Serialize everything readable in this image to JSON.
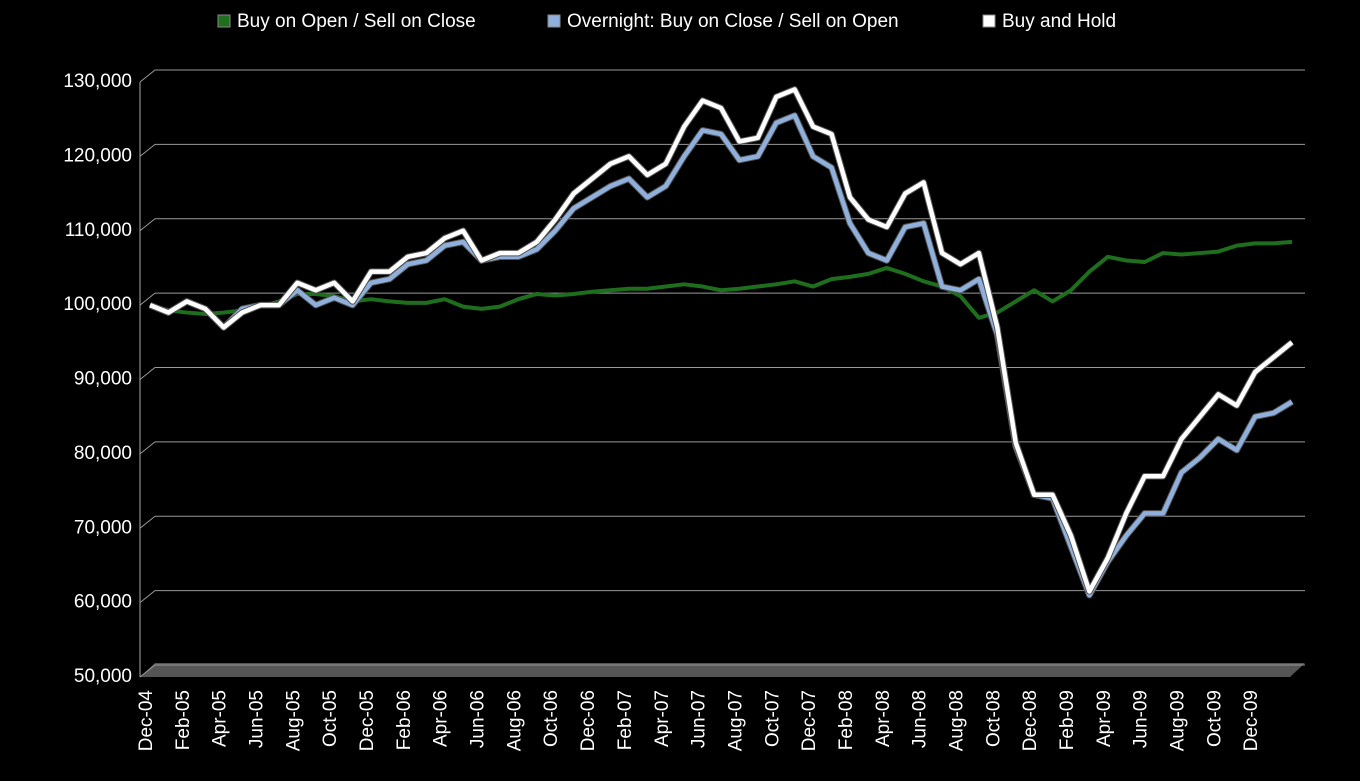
{
  "chart_data": {
    "type": "line",
    "categories": [
      "Dec-04",
      null,
      "Feb-05",
      null,
      "Apr-05",
      null,
      "Jun-05",
      null,
      "Aug-05",
      null,
      "Oct-05",
      null,
      "Dec-05",
      null,
      "Feb-06",
      null,
      "Apr-06",
      null,
      "Jun-06",
      null,
      "Aug-06",
      null,
      "Oct-06",
      null,
      "Dec-06",
      null,
      "Feb-07",
      null,
      "Apr-07",
      null,
      "Jun-07",
      null,
      "Aug-07",
      null,
      "Oct-07",
      null,
      "Dec-07",
      null,
      "Feb-08",
      null,
      "Apr-08",
      null,
      "Jun-08",
      null,
      "Aug-08",
      null,
      "Oct-08",
      null,
      "Dec-08",
      null,
      "Feb-09",
      null,
      "Apr-09",
      null,
      "Jun-09",
      null,
      "Aug-09",
      null,
      "Oct-09",
      null,
      "Dec-09",
      null,
      null
    ],
    "series": [
      {
        "name": "Buy on Open / Sell on Close",
        "color": "#1e6e1e",
        "values": [
          100000,
          99300,
          99000,
          98800,
          99000,
          99300,
          99800,
          100500,
          101500,
          101500,
          101200,
          100500,
          100800,
          100500,
          100300,
          100300,
          100800,
          99800,
          99500,
          99800,
          100800,
          101500,
          101300,
          101500,
          101800,
          102000,
          102200,
          102200,
          102500,
          102800,
          102500,
          102000,
          102200,
          102500,
          102800,
          103200,
          102500,
          103500,
          103800,
          104200,
          105000,
          104200,
          103200,
          102500,
          101200,
          98300,
          99000,
          100500,
          102000,
          100500,
          102000,
          104500,
          106500,
          106000,
          105800,
          107000,
          106800,
          107000,
          107200,
          108000,
          108300,
          108300,
          108500
        ]
      },
      {
        "name": "Overnight: Buy on Close / Sell on Open",
        "color": "#8fb0dc",
        "values": [
          100000,
          99000,
          100500,
          99500,
          97000,
          99500,
          100000,
          100000,
          102000,
          100000,
          101000,
          100000,
          103000,
          103500,
          105500,
          106000,
          108000,
          108500,
          106000,
          106500,
          106500,
          107500,
          110000,
          113000,
          114500,
          116000,
          117000,
          114500,
          116000,
          120000,
          123500,
          123000,
          119500,
          120000,
          124500,
          125500,
          120000,
          118500,
          111000,
          107000,
          106000,
          110500,
          111000,
          102500,
          102000,
          103500,
          96000,
          81000,
          74500,
          74000,
          67500,
          61000,
          65500,
          69000,
          72000,
          72000,
          77500,
          79500,
          82000,
          80500,
          85000,
          85500,
          87000
        ]
      },
      {
        "name": "Buy and Hold",
        "color": "#ffffff",
        "values": [
          100000,
          99000,
          100500,
          99500,
          97000,
          99000,
          100000,
          100000,
          103000,
          102000,
          103000,
          100500,
          104500,
          104500,
          106500,
          107000,
          109000,
          110000,
          106000,
          107000,
          107000,
          108500,
          111500,
          115000,
          117000,
          119000,
          120000,
          117500,
          119000,
          124000,
          127500,
          126500,
          122000,
          122500,
          128000,
          129000,
          124000,
          123000,
          114500,
          111500,
          110500,
          115000,
          116500,
          107000,
          105500,
          107000,
          97000,
          81500,
          74500,
          74500,
          69000,
          61500,
          66000,
          72000,
          77000,
          77000,
          82000,
          85000,
          88000,
          86500,
          91000,
          93000,
          95000
        ]
      }
    ],
    "ylim": [
      50000,
      130000
    ],
    "yticks": [
      {
        "value": 50000,
        "label": "50,000"
      },
      {
        "value": 60000,
        "label": "60,000"
      },
      {
        "value": 70000,
        "label": "70,000"
      },
      {
        "value": 80000,
        "label": "80,000"
      },
      {
        "value": 90000,
        "label": "90,000"
      },
      {
        "value": 100000,
        "label": "100,000"
      },
      {
        "value": 110000,
        "label": "110,000"
      },
      {
        "value": 120000,
        "label": "120,000"
      },
      {
        "value": 130000,
        "label": "130,000"
      }
    ],
    "grid": true,
    "legend": "top"
  }
}
